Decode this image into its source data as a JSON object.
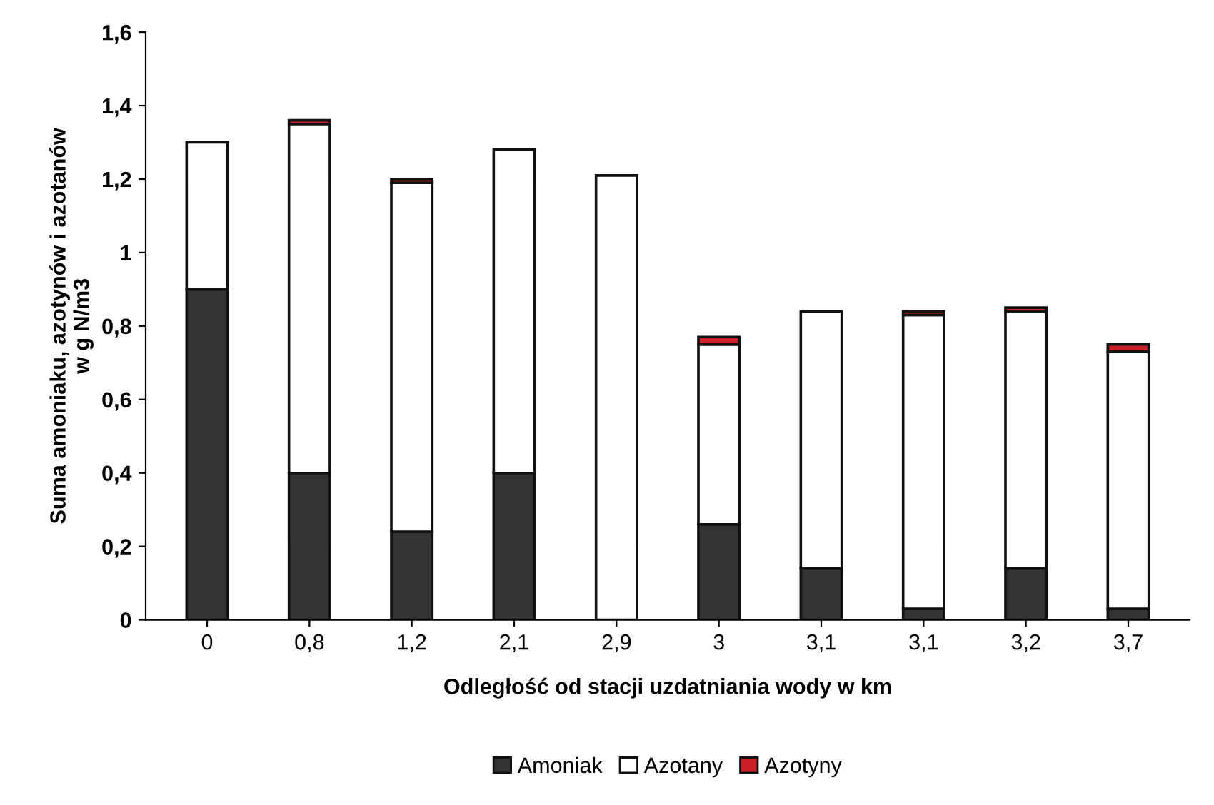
{
  "chart_data": {
    "type": "bar",
    "stacked": true,
    "xlabel": "Odległość od stacji uzdatniania wody w km",
    "ylabel": "Suma amoniaku, azotynów i azotanów\nw g N/m3",
    "categories": [
      "0",
      "0,8",
      "1,2",
      "2,1",
      "2,9",
      "3",
      "3,1",
      "3,1",
      "3,2",
      "3,7"
    ],
    "series": [
      {
        "name": "Amoniak",
        "color": "#333333",
        "values": [
          0.9,
          0.4,
          0.24,
          0.4,
          null,
          0.26,
          0.14,
          0.03,
          0.14,
          0.03
        ]
      },
      {
        "name": "Azotany",
        "color": "#ffffff",
        "values": [
          0.4,
          0.95,
          0.95,
          0.88,
          1.21,
          0.49,
          0.7,
          0.8,
          0.7,
          0.7
        ]
      },
      {
        "name": "Azotyny",
        "color": "#cc1f2a",
        "values": [
          null,
          0.01,
          0.01,
          null,
          null,
          0.02,
          null,
          0.01,
          0.01,
          0.02
        ]
      }
    ],
    "ylim": [
      0,
      1.6
    ],
    "yticks": [
      0,
      {
        "value": 0.2,
        "label": "0,2"
      },
      {
        "value": 0.4,
        "label": "0,4"
      },
      {
        "value": 0.6,
        "label": "0,6"
      },
      {
        "value": 0.8,
        "label": "0,8"
      },
      1,
      {
        "value": 1.2,
        "label": "1,2"
      },
      {
        "value": 1.4,
        "label": "1,4"
      },
      {
        "value": 1.6,
        "label": "1,6"
      }
    ],
    "grid": false,
    "legend": "bottom"
  }
}
